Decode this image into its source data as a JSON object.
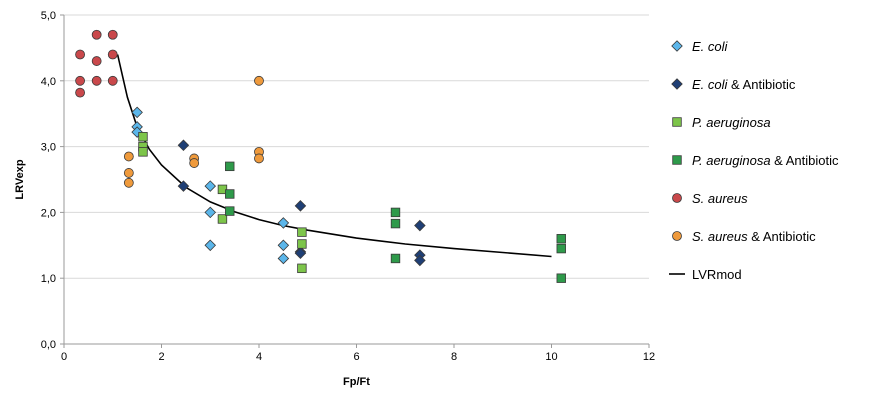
{
  "chart_data": {
    "type": "scatter",
    "title": "",
    "xlabel": "Fp/Ft",
    "ylabel": "LRVexp",
    "xlim": [
      0,
      12
    ],
    "ylim": [
      0,
      5
    ],
    "x_ticks": [
      0,
      2,
      4,
      6,
      8,
      10,
      12
    ],
    "y_ticks": [
      0,
      1,
      2,
      3,
      4,
      5
    ],
    "x_tick_labels": [
      "0",
      "2",
      "4",
      "6",
      "8",
      "10",
      "12"
    ],
    "y_tick_labels": [
      "0,0",
      "1,0",
      "2,0",
      "3,0",
      "4,0",
      "5,0"
    ],
    "grid": "horizontal",
    "legend_position": "right",
    "series": [
      {
        "name": "E. coli",
        "italic": "E. coli",
        "suffix": "",
        "marker": "diamond",
        "color": "#5bb6ea",
        "points": [
          [
            1.5,
            3.52
          ],
          [
            1.5,
            3.3
          ],
          [
            1.5,
            3.22
          ],
          [
            3.0,
            2.4
          ],
          [
            3.0,
            2.0
          ],
          [
            3.0,
            1.5
          ],
          [
            4.5,
            1.84
          ],
          [
            4.5,
            1.5
          ],
          [
            4.5,
            1.3
          ]
        ]
      },
      {
        "name": "E. coli & Antibiotic",
        "italic": "E. coli",
        "suffix": " & Antibiotic",
        "marker": "diamond",
        "color": "#1f3f75",
        "points": [
          [
            2.45,
            3.02
          ],
          [
            2.45,
            2.4
          ],
          [
            4.85,
            2.1
          ],
          [
            4.85,
            1.4
          ],
          [
            4.85,
            1.38
          ],
          [
            7.3,
            1.8
          ],
          [
            7.3,
            1.35
          ],
          [
            7.3,
            1.27
          ]
        ]
      },
      {
        "name": "P. aeruginosa",
        "italic": "P. aeruginosa",
        "suffix": "",
        "marker": "square",
        "color": "#7dc54a",
        "points": [
          [
            1.62,
            3.15
          ],
          [
            1.62,
            3.0
          ],
          [
            1.62,
            2.92
          ],
          [
            3.25,
            2.35
          ],
          [
            3.25,
            1.9
          ],
          [
            4.88,
            1.7
          ],
          [
            4.88,
            1.52
          ],
          [
            4.88,
            1.15
          ]
        ]
      },
      {
        "name": "P. aeruginosa & Antibiotic",
        "italic": "P. aeruginosa",
        "suffix": " & Antibiotic",
        "marker": "square",
        "color": "#2e9a4a",
        "points": [
          [
            3.4,
            2.7
          ],
          [
            3.4,
            2.28
          ],
          [
            3.4,
            2.02
          ],
          [
            6.8,
            2.0
          ],
          [
            6.8,
            1.83
          ],
          [
            6.8,
            1.3
          ],
          [
            10.2,
            1.6
          ],
          [
            10.2,
            1.45
          ],
          [
            10.2,
            1.0
          ]
        ]
      },
      {
        "name": "S. aureus",
        "italic": "S. aureus",
        "suffix": "",
        "marker": "circle",
        "color": "#c9484b",
        "points": [
          [
            0.33,
            4.4
          ],
          [
            0.33,
            4.0
          ],
          [
            0.33,
            3.82
          ],
          [
            0.67,
            4.7
          ],
          [
            0.67,
            4.3
          ],
          [
            0.67,
            4.0
          ],
          [
            1.0,
            4.7
          ],
          [
            1.0,
            4.4
          ],
          [
            1.0,
            4.0
          ]
        ]
      },
      {
        "name": "S. aureus & Antibiotic",
        "italic": "S. aureus",
        "suffix": " & Antibiotic",
        "marker": "circle",
        "color": "#ef9a3c",
        "points": [
          [
            1.33,
            2.85
          ],
          [
            1.33,
            2.6
          ],
          [
            1.33,
            2.45
          ],
          [
            2.67,
            2.82
          ],
          [
            2.67,
            2.75
          ],
          [
            4.0,
            4.0
          ],
          [
            4.0,
            2.92
          ],
          [
            4.0,
            2.82
          ]
        ]
      },
      {
        "name": "LVRmod",
        "italic": "",
        "suffix": "LVRmod",
        "marker": "line",
        "color": "#000000",
        "points": [
          [
            1.1,
            4.4
          ],
          [
            1.3,
            3.75
          ],
          [
            1.5,
            3.3
          ],
          [
            1.75,
            2.96
          ],
          [
            2.0,
            2.72
          ],
          [
            2.5,
            2.38
          ],
          [
            3.0,
            2.16
          ],
          [
            3.5,
            2.01
          ],
          [
            4.0,
            1.89
          ],
          [
            4.5,
            1.8
          ],
          [
            5.0,
            1.73
          ],
          [
            6.0,
            1.61
          ],
          [
            7.0,
            1.52
          ],
          [
            8.0,
            1.45
          ],
          [
            9.0,
            1.39
          ],
          [
            10.0,
            1.33
          ]
        ]
      }
    ]
  }
}
